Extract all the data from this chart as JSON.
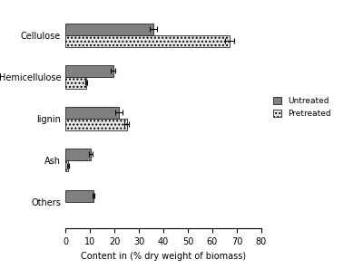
{
  "categories": [
    "Others",
    "Ash",
    "lignin",
    "Hemicellulose",
    "Cellulose"
  ],
  "untreated_values": [
    11.5,
    10.5,
    22.0,
    19.5,
    36.0
  ],
  "pretreated_values": [
    null,
    1.0,
    25.0,
    8.5,
    67.0
  ],
  "untreated_errors": [
    0.5,
    0.7,
    1.5,
    0.8,
    1.5
  ],
  "pretreated_errors": [
    null,
    0.3,
    0.8,
    0.5,
    2.0
  ],
  "untreated_color": "#808080",
  "pretreated_color": "#e8e8e8",
  "pretreated_hatch": "....",
  "xlim": [
    0,
    80
  ],
  "xticks": [
    0,
    10,
    20,
    30,
    40,
    50,
    60,
    70,
    80
  ],
  "xlabel": "Content in (% dry weight of biomass)",
  "legend_untreated": "Untreated",
  "legend_pretreated": "Pretreated",
  "bar_height": 0.28,
  "figsize": [
    4.0,
    2.97
  ],
  "dpi": 100
}
